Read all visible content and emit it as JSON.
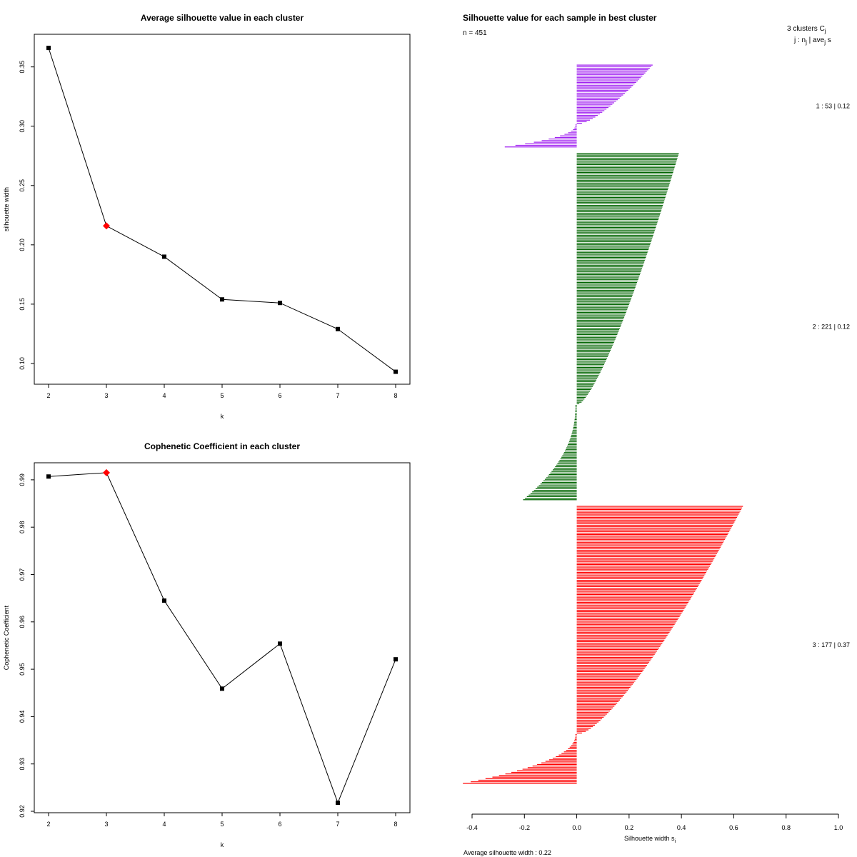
{
  "chart_data": [
    {
      "type": "line",
      "title": "Average silhouette value in each cluster",
      "xlabel": "k",
      "ylabel": "silhouette width",
      "x": [
        2,
        3,
        4,
        5,
        6,
        7,
        8
      ],
      "values": [
        0.366,
        0.216,
        0.19,
        0.154,
        0.151,
        0.129,
        0.093
      ],
      "highlight_index": 1,
      "highlight_color": "#ff0000",
      "xlim": [
        2,
        8
      ],
      "ylim": [
        0.0825,
        0.3775
      ],
      "yticks": [
        "0.10",
        "0.15",
        "0.20",
        "0.25",
        "0.30",
        "0.35"
      ],
      "xticks": [
        "2",
        "3",
        "4",
        "5",
        "6",
        "7",
        "8"
      ]
    },
    {
      "type": "line",
      "title": "Cophenetic Coefficient in each cluster",
      "xlabel": "k",
      "ylabel": "Cophenetic Coefficient",
      "x": [
        2,
        3,
        4,
        5,
        6,
        7,
        8
      ],
      "values": [
        0.9907,
        0.9915,
        0.9645,
        0.9459,
        0.9554,
        0.9218,
        0.9521
      ],
      "highlight_index": 1,
      "highlight_color": "#ff0000",
      "xlim": [
        2,
        8
      ],
      "ylim": [
        0.9197,
        0.9936
      ],
      "yticks": [
        "0.92",
        "0.93",
        "0.94",
        "0.95",
        "0.96",
        "0.97",
        "0.98",
        "0.99"
      ],
      "xticks": [
        "2",
        "3",
        "4",
        "5",
        "6",
        "7",
        "8"
      ]
    },
    {
      "type": "bar",
      "orientation": "horizontal",
      "title": "Silhouette value for each sample in best cluster",
      "n_label": "n = 451",
      "header1": "3  clusters  C",
      "header1_sub": "j",
      "header2": "j :  n",
      "header2_rest": " | ave",
      "header2_s": " s",
      "xlabel": "Silhouette width s",
      "xlabel_sub": "i",
      "footer": "Average silhouette width :  0.22",
      "xlim": [
        -0.4,
        1.0
      ],
      "xticks": [
        "-0.4",
        "-0.2",
        "0.0",
        "0.2",
        "0.4",
        "0.6",
        "0.8",
        "1.0"
      ],
      "clusters": [
        {
          "id": 1,
          "label": "1 :   53  |  0.12",
          "n": 53,
          "color": "#a020f0",
          "positive": 38,
          "pos_max": 0.29,
          "pos_min": 0.02,
          "neg_max": 0.27
        },
        {
          "id": 2,
          "label": "2 :   221  |  0.12",
          "n": 221,
          "color": "#006400",
          "positive": 160,
          "pos_max": 0.39,
          "pos_min": 0.01,
          "neg_max": 0.2
        },
        {
          "id": 3,
          "label": "3 :   177  |  0.37",
          "n": 177,
          "color": "#ff0000",
          "positive": 145,
          "pos_max": 0.635,
          "pos_min": 0.02,
          "neg_max": 0.43
        }
      ]
    }
  ]
}
